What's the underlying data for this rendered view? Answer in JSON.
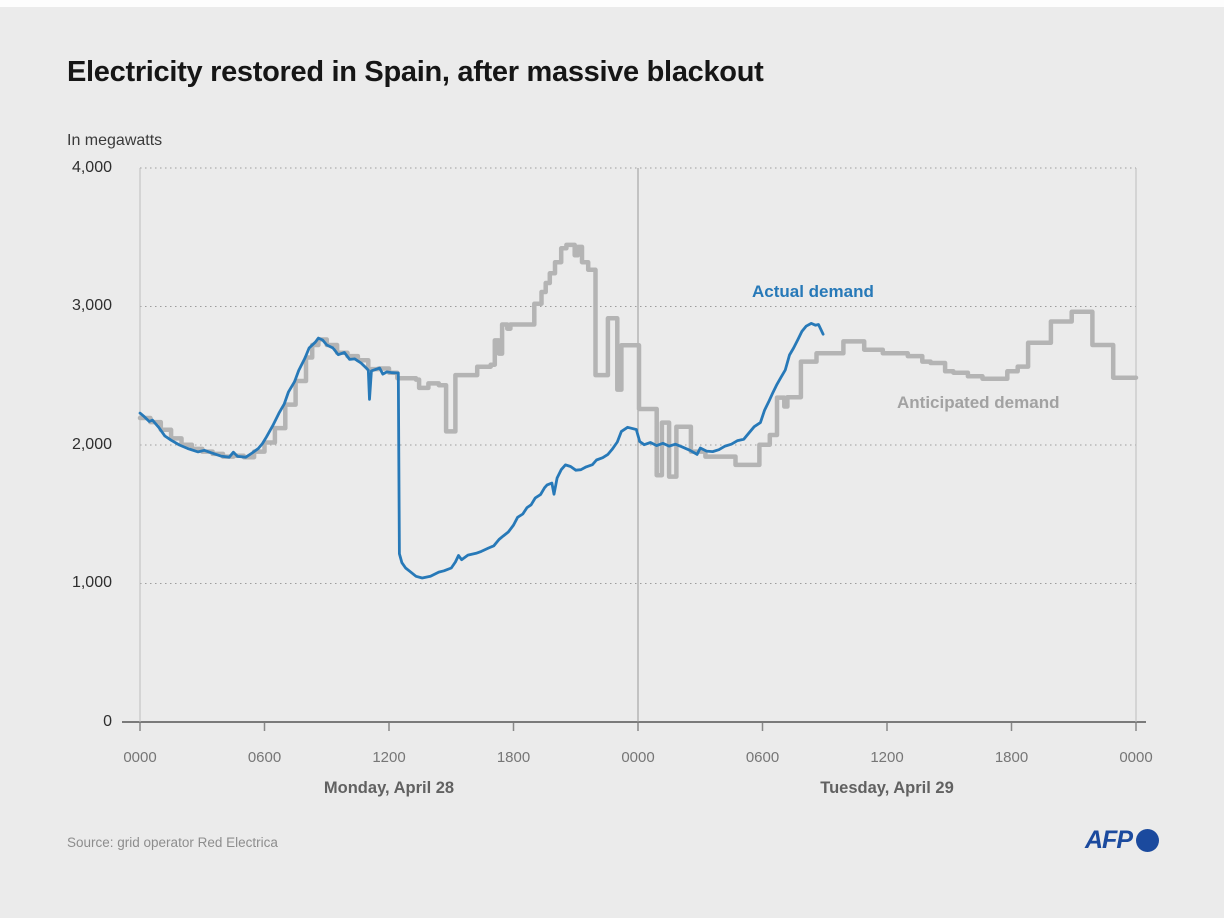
{
  "title": "Electricity restored in Spain, after massive blackout",
  "subtitle": "In megawatts",
  "source": "Source: grid operator Red Electrica",
  "branding": {
    "logo_text": "AFP"
  },
  "colors": {
    "actual_demand": "#2779b8",
    "anticipated_demand": "#b4b4b4",
    "background": "#ebebeb",
    "afp_blue": "#1b4a9e",
    "axis": "#555555",
    "gridline": "#9c9c9c"
  },
  "chart_data": {
    "type": "line",
    "title": "Electricity restored in Spain, after massive blackout",
    "unit_label": "In megawatts",
    "ylabel": "",
    "xlabel": "",
    "ylim": [
      0,
      4000
    ],
    "xlim_hours": [
      0,
      48
    ],
    "grid": "horizontal dotted",
    "legend_position": "inline annotations",
    "y_tick_values": [
      4000,
      3000,
      2000,
      1000,
      0
    ],
    "y_tick_labels": [
      "4,000",
      "3,000",
      "2,000",
      "1,000",
      "0"
    ],
    "x_tick_hours": [
      0,
      6,
      12,
      18,
      24,
      30,
      36,
      42,
      48
    ],
    "x_tick_labels": [
      "0000",
      "0600",
      "1200",
      "1800",
      "0000",
      "0600",
      "1200",
      "1800",
      "0000"
    ],
    "day_boundary_hours": [
      0,
      24,
      48
    ],
    "day_labels": [
      {
        "label": "Monday, April 28",
        "hour": 12
      },
      {
        "label": "Tuesday, April 29",
        "hour": 36
      }
    ],
    "series": [
      {
        "name": "Anticipated demand",
        "color": "#b4b4b4",
        "style": "step",
        "points": [
          [
            0,
            2195
          ],
          [
            0.5,
            2165
          ],
          [
            1,
            2110
          ],
          [
            1.5,
            2048
          ],
          [
            2,
            2002
          ],
          [
            2.5,
            1972
          ],
          [
            3,
            1952
          ],
          [
            3.5,
            1936
          ],
          [
            4,
            1916
          ],
          [
            4.5,
            1922
          ],
          [
            5,
            1912
          ],
          [
            5.5,
            1952
          ],
          [
            6,
            2018
          ],
          [
            6.5,
            2122
          ],
          [
            7,
            2292
          ],
          [
            7.5,
            2462
          ],
          [
            8,
            2632
          ],
          [
            8.3,
            2722
          ],
          [
            8.6,
            2762
          ],
          [
            9,
            2722
          ],
          [
            9.5,
            2666
          ],
          [
            10,
            2642
          ],
          [
            10.5,
            2612
          ],
          [
            11,
            2548
          ],
          [
            11.5,
            2552
          ],
          [
            12,
            2522
          ],
          [
            12.4,
            2482
          ],
          [
            13.3,
            2472
          ],
          [
            13.45,
            2412
          ],
          [
            13.9,
            2445
          ],
          [
            14.4,
            2432
          ],
          [
            14.75,
            2098
          ],
          [
            15.2,
            2505
          ],
          [
            16.25,
            2565
          ],
          [
            16.9,
            2580
          ],
          [
            17.1,
            2755
          ],
          [
            17.3,
            2660
          ],
          [
            17.45,
            2870
          ],
          [
            17.7,
            2840
          ],
          [
            17.85,
            2870
          ],
          [
            18.8,
            2870
          ],
          [
            19.0,
            3020
          ],
          [
            19.35,
            3105
          ],
          [
            19.55,
            3170
          ],
          [
            19.75,
            3240
          ],
          [
            20.0,
            3320
          ],
          [
            20.3,
            3420
          ],
          [
            20.55,
            3445
          ],
          [
            20.95,
            3370
          ],
          [
            21.1,
            3430
          ],
          [
            21.3,
            3320
          ],
          [
            21.6,
            3265
          ],
          [
            21.95,
            2505
          ],
          [
            22.55,
            2915
          ],
          [
            23.0,
            2400
          ],
          [
            23.2,
            2720
          ],
          [
            24.05,
            2260
          ],
          [
            24.9,
            1782
          ],
          [
            25.15,
            2162
          ],
          [
            25.5,
            1772
          ],
          [
            25.85,
            2132
          ],
          [
            26.55,
            1952
          ],
          [
            27.25,
            1916
          ],
          [
            28.7,
            1856
          ],
          [
            29.85,
            2002
          ],
          [
            30.35,
            2072
          ],
          [
            30.7,
            2342
          ],
          [
            31.05,
            2278
          ],
          [
            31.2,
            2345
          ],
          [
            31.85,
            2602
          ],
          [
            32.6,
            2662
          ],
          [
            33.9,
            2748
          ],
          [
            34.9,
            2688
          ],
          [
            35.8,
            2662
          ],
          [
            37.0,
            2642
          ],
          [
            37.7,
            2602
          ],
          [
            38.1,
            2592
          ],
          [
            38.8,
            2532
          ],
          [
            39.2,
            2522
          ],
          [
            39.9,
            2496
          ],
          [
            40.6,
            2478
          ],
          [
            41.8,
            2532
          ],
          [
            42.3,
            2566
          ],
          [
            42.8,
            2738
          ],
          [
            43.9,
            2892
          ],
          [
            44.9,
            2962
          ],
          [
            45.9,
            2722
          ],
          [
            46.9,
            2486
          ],
          [
            48,
            2486
          ]
        ]
      },
      {
        "name": "Actual demand",
        "color": "#2779b8",
        "style": "line",
        "points": [
          [
            0,
            2230
          ],
          [
            0.2,
            2205
          ],
          [
            0.45,
            2170
          ],
          [
            0.6,
            2180
          ],
          [
            0.9,
            2128
          ],
          [
            1.2,
            2065
          ],
          [
            1.5,
            2035
          ],
          [
            1.9,
            2000
          ],
          [
            2.3,
            1975
          ],
          [
            2.8,
            1950
          ],
          [
            3.1,
            1962
          ],
          [
            3.4,
            1945
          ],
          [
            3.9,
            1920
          ],
          [
            4.3,
            1912
          ],
          [
            4.5,
            1948
          ],
          [
            4.7,
            1918
          ],
          [
            5.1,
            1912
          ],
          [
            5.4,
            1942
          ],
          [
            5.7,
            1975
          ],
          [
            5.9,
            2010
          ],
          [
            6.1,
            2060
          ],
          [
            6.4,
            2140
          ],
          [
            6.7,
            2230
          ],
          [
            6.95,
            2295
          ],
          [
            7.15,
            2382
          ],
          [
            7.45,
            2458
          ],
          [
            7.65,
            2538
          ],
          [
            7.95,
            2628
          ],
          [
            8.15,
            2700
          ],
          [
            8.45,
            2742
          ],
          [
            8.6,
            2772
          ],
          [
            8.8,
            2758
          ],
          [
            9.0,
            2722
          ],
          [
            9.3,
            2700
          ],
          [
            9.55,
            2652
          ],
          [
            9.85,
            2668
          ],
          [
            10.1,
            2618
          ],
          [
            10.35,
            2622
          ],
          [
            10.65,
            2592
          ],
          [
            10.9,
            2556
          ],
          [
            11.0,
            2540
          ],
          [
            11.06,
            2330
          ],
          [
            11.15,
            2535
          ],
          [
            11.35,
            2545
          ],
          [
            11.55,
            2555
          ],
          [
            11.7,
            2512
          ],
          [
            11.9,
            2528
          ],
          [
            12.15,
            2522
          ],
          [
            12.45,
            2520
          ],
          [
            12.5,
            1215
          ],
          [
            12.62,
            1150
          ],
          [
            12.8,
            1112
          ],
          [
            13.0,
            1088
          ],
          [
            13.3,
            1052
          ],
          [
            13.6,
            1040
          ],
          [
            14.0,
            1052
          ],
          [
            14.4,
            1082
          ],
          [
            14.65,
            1092
          ],
          [
            15.0,
            1112
          ],
          [
            15.2,
            1155
          ],
          [
            15.35,
            1202
          ],
          [
            15.5,
            1172
          ],
          [
            15.8,
            1205
          ],
          [
            16.2,
            1218
          ],
          [
            16.45,
            1232
          ],
          [
            16.8,
            1256
          ],
          [
            17.05,
            1272
          ],
          [
            17.3,
            1318
          ],
          [
            17.5,
            1342
          ],
          [
            17.75,
            1372
          ],
          [
            18.0,
            1422
          ],
          [
            18.2,
            1478
          ],
          [
            18.45,
            1502
          ],
          [
            18.65,
            1548
          ],
          [
            18.85,
            1568
          ],
          [
            19.05,
            1618
          ],
          [
            19.3,
            1642
          ],
          [
            19.5,
            1692
          ],
          [
            19.62,
            1712
          ],
          [
            19.85,
            1725
          ],
          [
            19.95,
            1645
          ],
          [
            20.1,
            1762
          ],
          [
            20.3,
            1822
          ],
          [
            20.5,
            1856
          ],
          [
            20.75,
            1845
          ],
          [
            21.0,
            1818
          ],
          [
            21.25,
            1822
          ],
          [
            21.5,
            1842
          ],
          [
            21.8,
            1858
          ],
          [
            22.0,
            1892
          ],
          [
            22.3,
            1908
          ],
          [
            22.55,
            1932
          ],
          [
            22.75,
            1968
          ],
          [
            23.0,
            2022
          ],
          [
            23.2,
            2098
          ],
          [
            23.5,
            2128
          ],
          [
            23.92,
            2112
          ],
          [
            24.08,
            2025
          ],
          [
            24.3,
            2002
          ],
          [
            24.6,
            2018
          ],
          [
            24.9,
            1996
          ],
          [
            25.2,
            2012
          ],
          [
            25.5,
            1992
          ],
          [
            25.8,
            2006
          ],
          [
            26.1,
            1988
          ],
          [
            26.5,
            1962
          ],
          [
            26.85,
            1932
          ],
          [
            27.0,
            1978
          ],
          [
            27.3,
            1956
          ],
          [
            27.6,
            1952
          ],
          [
            27.9,
            1966
          ],
          [
            28.2,
            1992
          ],
          [
            28.5,
            2006
          ],
          [
            28.8,
            2032
          ],
          [
            29.1,
            2042
          ],
          [
            29.4,
            2096
          ],
          [
            29.6,
            2132
          ],
          [
            29.9,
            2162
          ],
          [
            30.1,
            2252
          ],
          [
            30.3,
            2312
          ],
          [
            30.5,
            2378
          ],
          [
            30.7,
            2438
          ],
          [
            30.9,
            2492
          ],
          [
            31.1,
            2542
          ],
          [
            31.3,
            2650
          ],
          [
            31.5,
            2700
          ],
          [
            31.7,
            2760
          ],
          [
            31.9,
            2820
          ],
          [
            32.1,
            2858
          ],
          [
            32.35,
            2878
          ],
          [
            32.55,
            2865
          ],
          [
            32.7,
            2870
          ],
          [
            32.8,
            2838
          ],
          [
            32.92,
            2800
          ]
        ]
      }
    ]
  }
}
